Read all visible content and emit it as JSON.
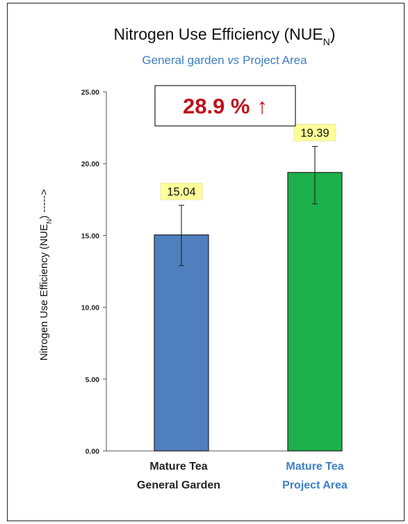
{
  "chart_data": {
    "type": "bar",
    "title": "Nitrogen Use Efficiency (NUE",
    "title_subscript": "N",
    "title_suffix": ")",
    "subtitle_part1": "General garden ",
    "subtitle_italic": "vs",
    "subtitle_part2": " Project Area",
    "ylabel_prefix": "Nitrogen Use Efficiency (NUE",
    "ylabel_subscript": "N",
    "ylabel_suffix": ") ----->",
    "ylim": [
      0,
      25
    ],
    "yticks": [
      "0.00",
      "5.00",
      "10.00",
      "15.00",
      "20.00",
      "25.00"
    ],
    "ytick_values": [
      0,
      5,
      10,
      15,
      20,
      25
    ],
    "categories": [
      {
        "line1": "Mature Tea",
        "line2": "General Garden",
        "color": "#222222"
      },
      {
        "line1": "Mature Tea",
        "line2": "Project Area",
        "color": "#3d7fc4"
      }
    ],
    "values": [
      15.04,
      19.39
    ],
    "data_labels": [
      "15.04",
      "19.39"
    ],
    "error_bars": [
      [
        12.9,
        17.1
      ],
      [
        17.2,
        21.2
      ]
    ],
    "bar_colors": [
      "#4f7fbf",
      "#1cb04a"
    ],
    "bar_edge_color": "#222222",
    "annotation": {
      "value": "28.9 %",
      "arrow": "↑",
      "color": "#c0101a"
    },
    "data_label_bg": "#ffff99",
    "grid": false,
    "legend": "none"
  }
}
